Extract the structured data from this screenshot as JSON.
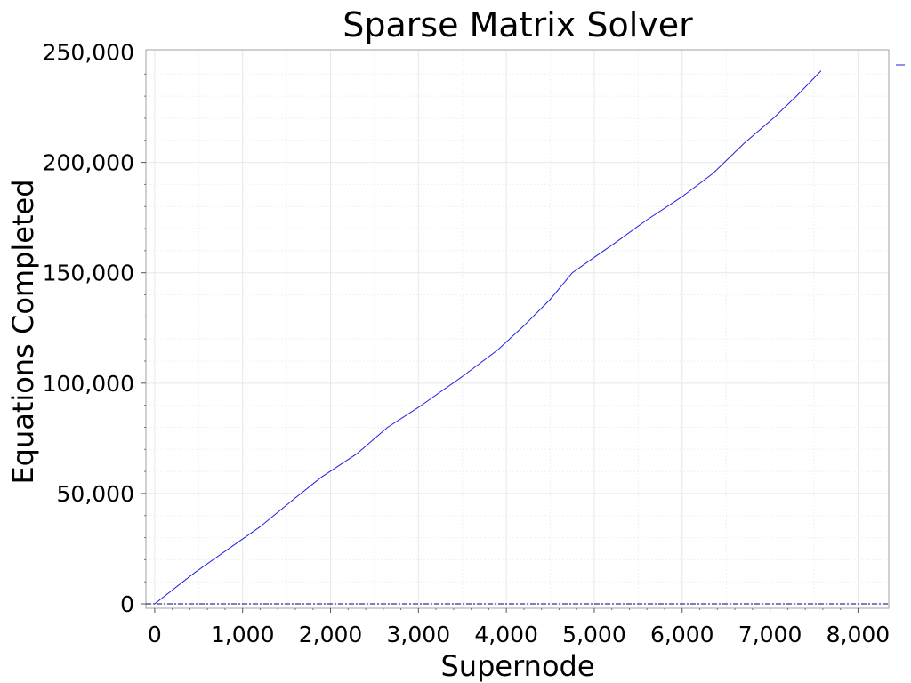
{
  "chart_data": {
    "type": "line",
    "title": "Sparse Matrix Solver",
    "xlabel": "Supernode",
    "ylabel": "Equations Completed",
    "xlim": [
      -100,
      8350
    ],
    "ylim": [
      -2000,
      251000
    ],
    "x_ticks": [
      0,
      1000,
      2000,
      3000,
      4000,
      5000,
      6000,
      7000,
      8000
    ],
    "x_tick_labels": [
      "0",
      "1,000",
      "2,000",
      "3,000",
      "4,000",
      "5,000",
      "6,000",
      "7,000",
      "8,000"
    ],
    "y_ticks": [
      0,
      50000,
      100000,
      150000,
      200000,
      250000
    ],
    "y_tick_labels": [
      "0",
      "50,000",
      "100,000",
      "150,000",
      "200,000",
      "250,000"
    ],
    "grid": true,
    "colors": {
      "series": "#2020e0",
      "grid": "#e8e8e8",
      "frame": "#a0a0a0",
      "zero_line": "#000080"
    },
    "series": [
      {
        "x": [
          0,
          450,
          1200,
          1600,
          1900,
          2300,
          2650,
          3000,
          3500,
          3900,
          4200,
          4500,
          4750,
          5000,
          5200,
          5600,
          6000,
          6350,
          6700,
          7050,
          7300,
          7580
        ],
        "values": [
          0,
          14000,
          35000,
          48000,
          57500,
          68000,
          80000,
          89000,
          103000,
          115000,
          126000,
          138000,
          150000,
          157000,
          162500,
          174000,
          184500,
          195000,
          208500,
          220500,
          230000,
          241500
        ]
      }
    ]
  }
}
